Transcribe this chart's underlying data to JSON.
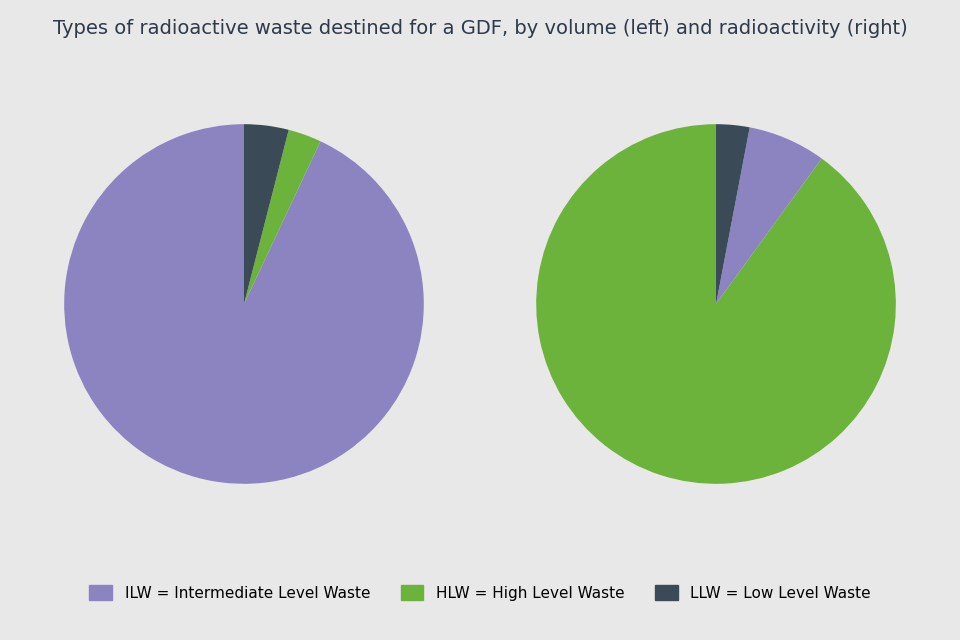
{
  "title": "Types of radioactive waste destined for a GDF, by volume (left) and radioactivity (right)",
  "title_color": "#2d3a4a",
  "title_fontsize": 14,
  "background_color": "#e8e8e8",
  "colors": {
    "ILW": "#8b84c0",
    "HLW": "#6bb33a",
    "LLW": "#3a4a57"
  },
  "left_pie": {
    "values": [
      93,
      3,
      4
    ],
    "categories": [
      "ILW",
      "HLW",
      "LLW"
    ],
    "startangle": 90
  },
  "right_pie": {
    "values": [
      90,
      7,
      3
    ],
    "categories": [
      "HLW",
      "ILW",
      "LLW"
    ],
    "startangle": 90
  },
  "legend_labels": [
    "ILW = Intermediate Level Waste",
    "HLW = High Level Waste",
    "LLW = Low Level Waste"
  ],
  "legend_keys": [
    "ILW",
    "HLW",
    "LLW"
  ]
}
